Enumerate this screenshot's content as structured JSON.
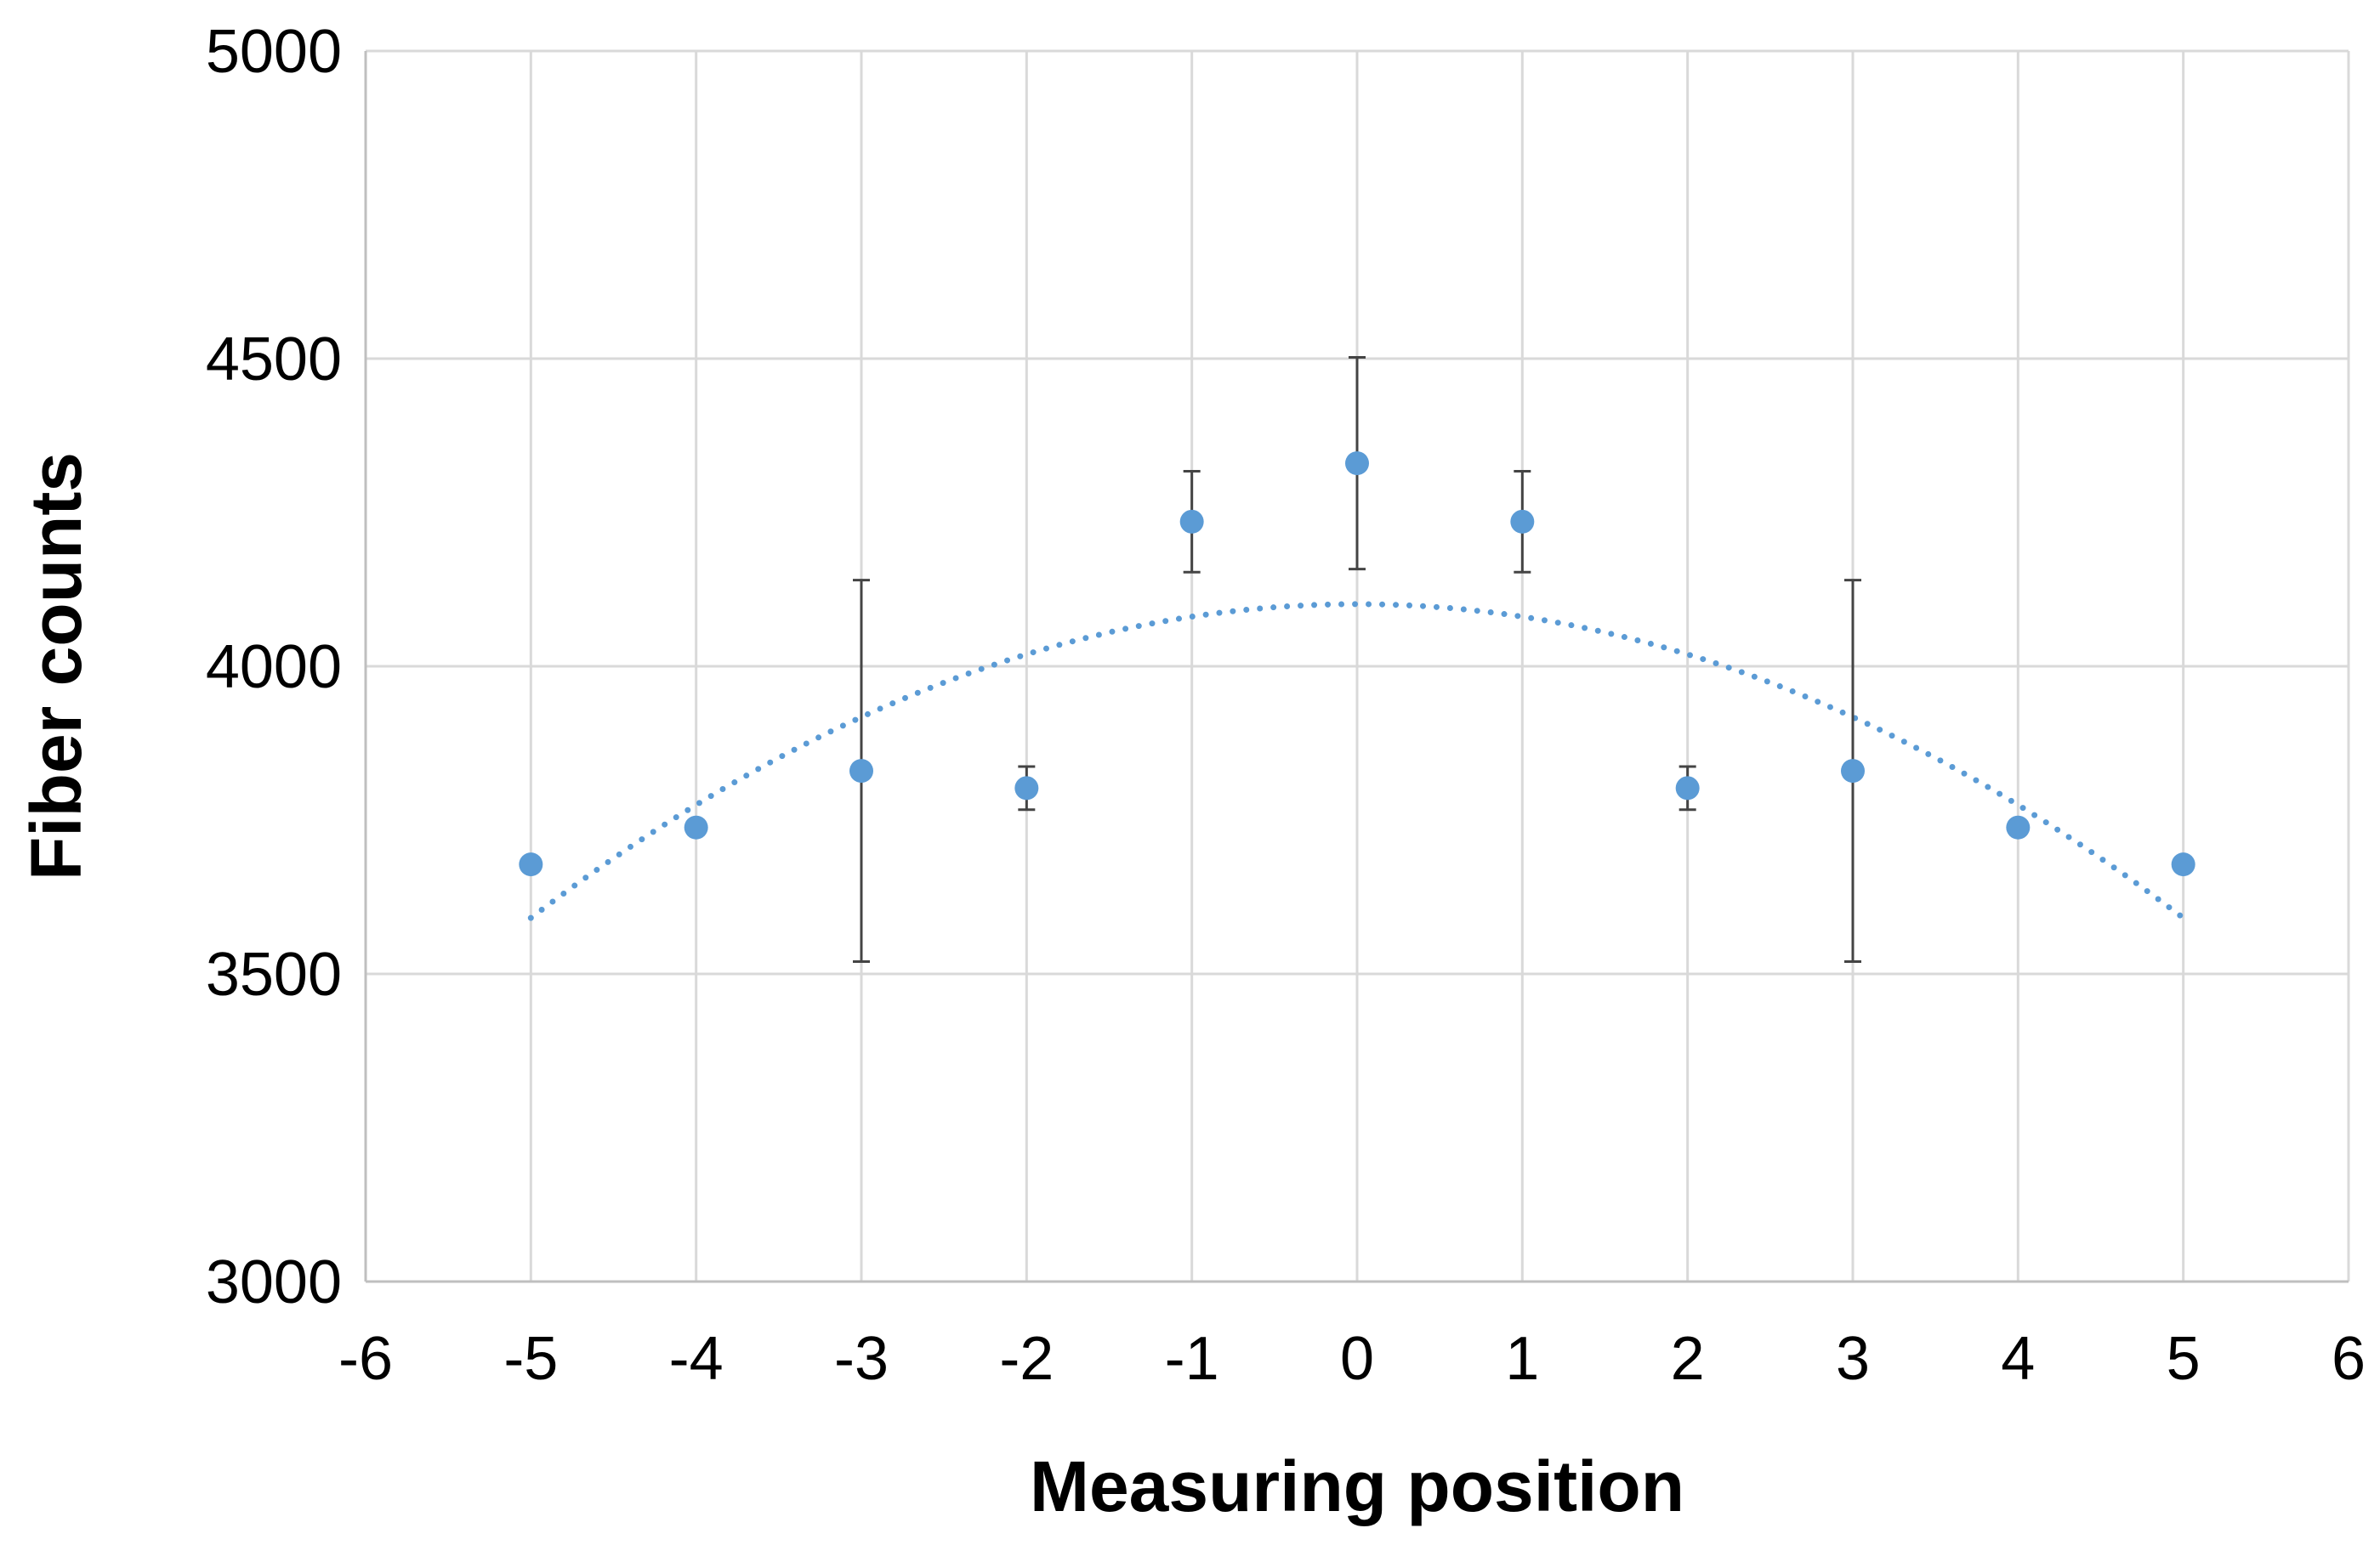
{
  "chart_data": {
    "type": "scatter",
    "title": "",
    "xlabel": "Measuring position",
    "ylabel": "Fiber counts",
    "xlim": [
      -6,
      6
    ],
    "ylim": [
      3000,
      5000
    ],
    "x_ticks": [
      "-6",
      "-5",
      "-4",
      "-3",
      "-2",
      "-1",
      "0",
      "1",
      "2",
      "3",
      "4",
      "5",
      "6"
    ],
    "y_ticks": [
      "3000",
      "3500",
      "4000",
      "4500",
      "5000"
    ],
    "grid": true,
    "legend": "none",
    "series": [
      {
        "type": "scatter",
        "color": "#5b9bd5",
        "points": [
          {
            "x": -5,
            "y": 3678,
            "err": 0
          },
          {
            "x": -4,
            "y": 3738,
            "err": 0
          },
          {
            "x": -3,
            "y": 3830,
            "err": 310
          },
          {
            "x": -2,
            "y": 3802,
            "err": 35
          },
          {
            "x": -1,
            "y": 4235,
            "err": 82
          },
          {
            "x": 0,
            "y": 4330,
            "err": 172
          },
          {
            "x": 1,
            "y": 4235,
            "err": 82
          },
          {
            "x": 2,
            "y": 3802,
            "err": 35
          },
          {
            "x": 3,
            "y": 3830,
            "err": 310
          },
          {
            "x": 4,
            "y": 3738,
            "err": 0
          },
          {
            "x": 5,
            "y": 3678,
            "err": 0
          }
        ]
      },
      {
        "type": "trendline",
        "style": "dotted",
        "color": "#5b9bd5",
        "fit": "polynomial-2",
        "coefficients": {
          "a": -20.4,
          "b": 0,
          "c": 4101
        },
        "x_range": [
          -5,
          5
        ]
      }
    ],
    "colors": {
      "marker": "#5b9bd5",
      "error_bar": "#444444",
      "grid": "#d9d9d9",
      "axis": "#bfbfbf"
    }
  }
}
